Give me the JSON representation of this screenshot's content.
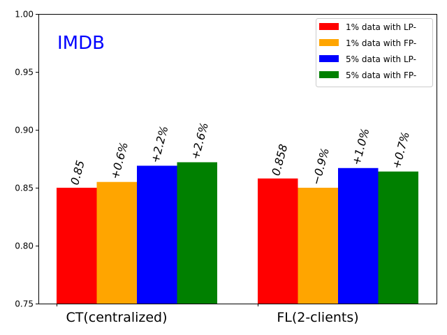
{
  "chart_data": {
    "type": "bar",
    "title": "",
    "xlabel": "",
    "ylabel": "",
    "inset_label": "IMDB",
    "ylim": [
      0.75,
      1.0
    ],
    "y_ticks": [
      "0.75",
      "0.80",
      "0.85",
      "0.90",
      "0.95",
      "1.00"
    ],
    "categories": [
      "CT(centralized)",
      "FL(2-clients)"
    ],
    "series": [
      {
        "name": "1% data with LP-",
        "color": "#ff0000",
        "values": [
          0.85,
          0.858
        ],
        "labels": [
          "0.85",
          "0.858"
        ]
      },
      {
        "name": "1% data with FP-",
        "color": "#ffa500",
        "values": [
          0.855,
          0.85
        ],
        "labels": [
          "+0.6%",
          "−0.9%"
        ]
      },
      {
        "name": "5% data with LP-",
        "color": "#0000ff",
        "values": [
          0.869,
          0.867
        ],
        "labels": [
          "+2.2%",
          "+1.0%"
        ]
      },
      {
        "name": "5% data with FP-",
        "color": "#008000",
        "values": [
          0.872,
          0.864
        ],
        "labels": [
          "+2.6%",
          "+0.7%"
        ]
      }
    ],
    "legend_position": "top-right",
    "grid": false
  }
}
